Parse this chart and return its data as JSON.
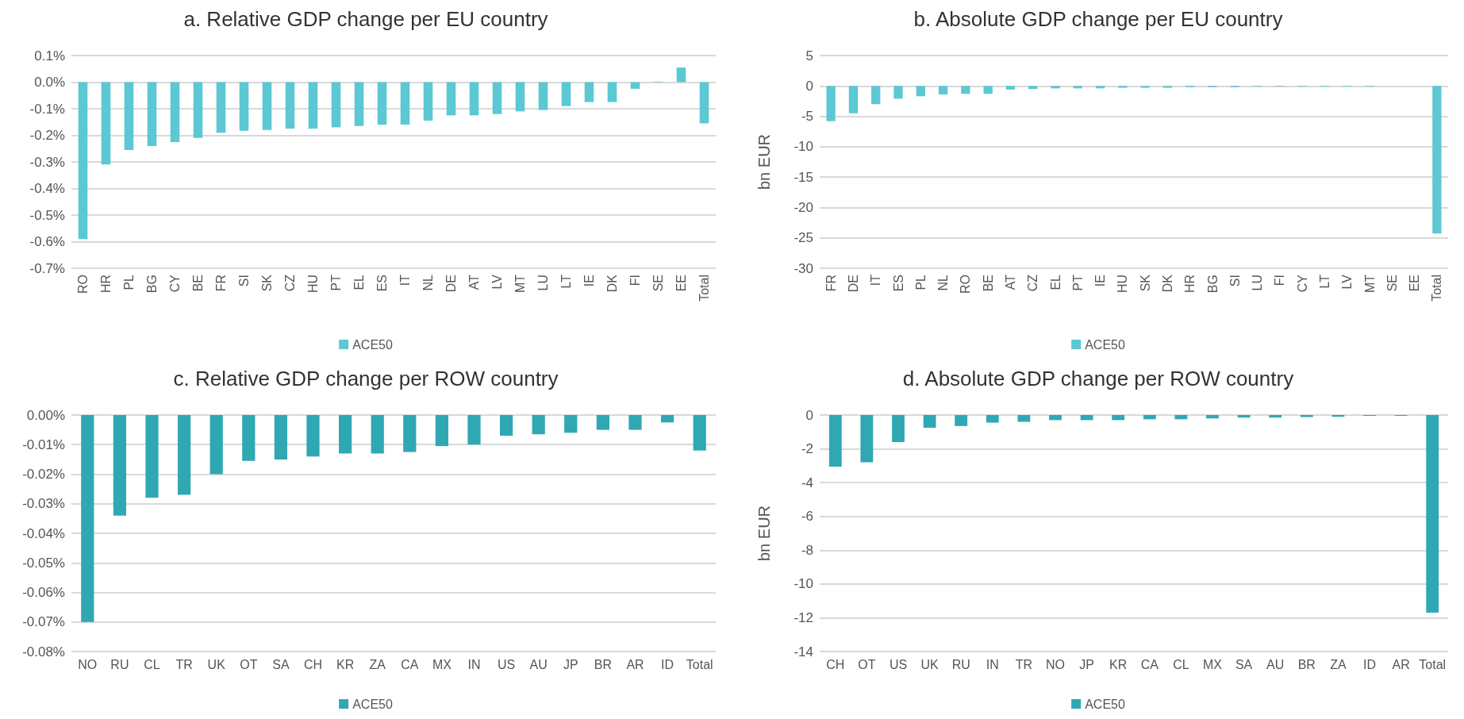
{
  "chart_data": [
    {
      "type": "bar",
      "title": "a. Relative GDP change per EU country",
      "categories": [
        "RO",
        "HR",
        "PL",
        "BG",
        "CY",
        "BE",
        "FR",
        "SI",
        "SK",
        "CZ",
        "HU",
        "PT",
        "EL",
        "ES",
        "IT",
        "NL",
        "DE",
        "AT",
        "LV",
        "MT",
        "LU",
        "LT",
        "IE",
        "DK",
        "FI",
        "SE",
        "EE",
        "Total"
      ],
      "series": [
        {
          "name": "ACE50",
          "color": "#5bc8d4",
          "values": [
            -0.59,
            -0.31,
            -0.255,
            -0.24,
            -0.225,
            -0.21,
            -0.19,
            -0.183,
            -0.18,
            -0.175,
            -0.175,
            -0.17,
            -0.165,
            -0.16,
            -0.16,
            -0.145,
            -0.125,
            -0.125,
            -0.12,
            -0.11,
            -0.105,
            -0.09,
            -0.075,
            -0.075,
            -0.025,
            0.002,
            0.055,
            -0.155
          ]
        }
      ],
      "ylim": [
        -0.7,
        0.1
      ],
      "yticks": [
        {
          "value": -0.7,
          "label": "-0.7%"
        },
        {
          "value": -0.6,
          "label": "-0.6%"
        },
        {
          "value": -0.5,
          "label": "-0.5%"
        },
        {
          "value": -0.4,
          "label": "-0.4%"
        },
        {
          "value": -0.3,
          "label": "-0.3%"
        },
        {
          "value": -0.2,
          "label": "-0.2%"
        },
        {
          "value": -0.1,
          "label": "-0.1%"
        },
        {
          "value": 0,
          "label": "0.0%"
        },
        {
          "value": 0.1,
          "label": "0.1%"
        }
      ],
      "grid": "y",
      "legend": "bottom"
    },
    {
      "type": "bar",
      "title": "b. Absolute GDP change per EU country",
      "ylabel": "bn EUR",
      "categories": [
        "FR",
        "DE",
        "IT",
        "ES",
        "PL",
        "NL",
        "RO",
        "BE",
        "AT",
        "CZ",
        "EL",
        "PT",
        "IE",
        "HU",
        "SK",
        "DK",
        "HR",
        "BG",
        "SI",
        "LU",
        "FI",
        "CY",
        "LT",
        "LV",
        "MT",
        "SE",
        "EE",
        "Total"
      ],
      "series": [
        {
          "name": "ACE50",
          "color": "#5bc8d4",
          "values": [
            -5.8,
            -4.5,
            -3,
            -2.1,
            -1.7,
            -1.4,
            -1.3,
            -1.3,
            -0.6,
            -0.5,
            -0.4,
            -0.4,
            -0.4,
            -0.3,
            -0.3,
            -0.3,
            -0.2,
            -0.2,
            -0.2,
            -0.1,
            -0.1,
            -0.1,
            -0.1,
            -0.1,
            -0.1,
            0,
            0,
            -24.3
          ]
        }
      ],
      "ylim": [
        -30,
        5
      ],
      "yticks": [
        -30,
        -25,
        -20,
        -15,
        -10,
        -5,
        0,
        5
      ],
      "grid": "y",
      "legend": "bottom"
    },
    {
      "type": "bar",
      "title": "c. Relative GDP change per ROW country",
      "categories": [
        "NO",
        "RU",
        "CL",
        "TR",
        "UK",
        "OT",
        "SA",
        "CH",
        "KR",
        "ZA",
        "CA",
        "MX",
        "IN",
        "US",
        "AU",
        "JP",
        "BR",
        "AR",
        "ID",
        "Total"
      ],
      "series": [
        {
          "name": "ACE50",
          "color": "#2fa8b4",
          "values": [
            -0.07,
            -0.034,
            -0.028,
            -0.027,
            -0.02,
            -0.0155,
            -0.015,
            -0.014,
            -0.013,
            -0.013,
            -0.0125,
            -0.0105,
            -0.01,
            -0.007,
            -0.0065,
            -0.006,
            -0.005,
            -0.005,
            -0.0025,
            -0.012
          ]
        }
      ],
      "ylim": [
        -0.08,
        0
      ],
      "yticks": [
        {
          "value": -0.08,
          "label": "-0.08%"
        },
        {
          "value": -0.07,
          "label": "-0.07%"
        },
        {
          "value": -0.06,
          "label": "-0.06%"
        },
        {
          "value": -0.05,
          "label": "-0.05%"
        },
        {
          "value": -0.04,
          "label": "-0.04%"
        },
        {
          "value": -0.03,
          "label": "-0.03%"
        },
        {
          "value": -0.02,
          "label": "-0.02%"
        },
        {
          "value": -0.01,
          "label": "-0.01%"
        },
        {
          "value": 0,
          "label": "0.00%"
        }
      ],
      "grid": "y",
      "legend": "bottom"
    },
    {
      "type": "bar",
      "title": "d. Absolute GDP change per ROW country",
      "ylabel": "bn EUR",
      "categories": [
        "CH",
        "OT",
        "US",
        "UK",
        "RU",
        "IN",
        "TR",
        "NO",
        "JP",
        "KR",
        "CA",
        "CL",
        "MX",
        "SA",
        "AU",
        "BR",
        "ZA",
        "ID",
        "AR",
        "Total"
      ],
      "series": [
        {
          "name": "ACE50",
          "color": "#2fa8b4",
          "values": [
            -3.05,
            -2.8,
            -1.6,
            -0.75,
            -0.65,
            -0.45,
            -0.4,
            -0.3,
            -0.3,
            -0.3,
            -0.25,
            -0.25,
            -0.2,
            -0.15,
            -0.15,
            -0.12,
            -0.1,
            -0.05,
            -0.05,
            -11.7
          ]
        }
      ],
      "ylim": [
        -14,
        0
      ],
      "yticks": [
        -14,
        -12,
        -10,
        -8,
        -6,
        -4,
        -2,
        0
      ],
      "grid": "y",
      "legend": "bottom"
    }
  ]
}
